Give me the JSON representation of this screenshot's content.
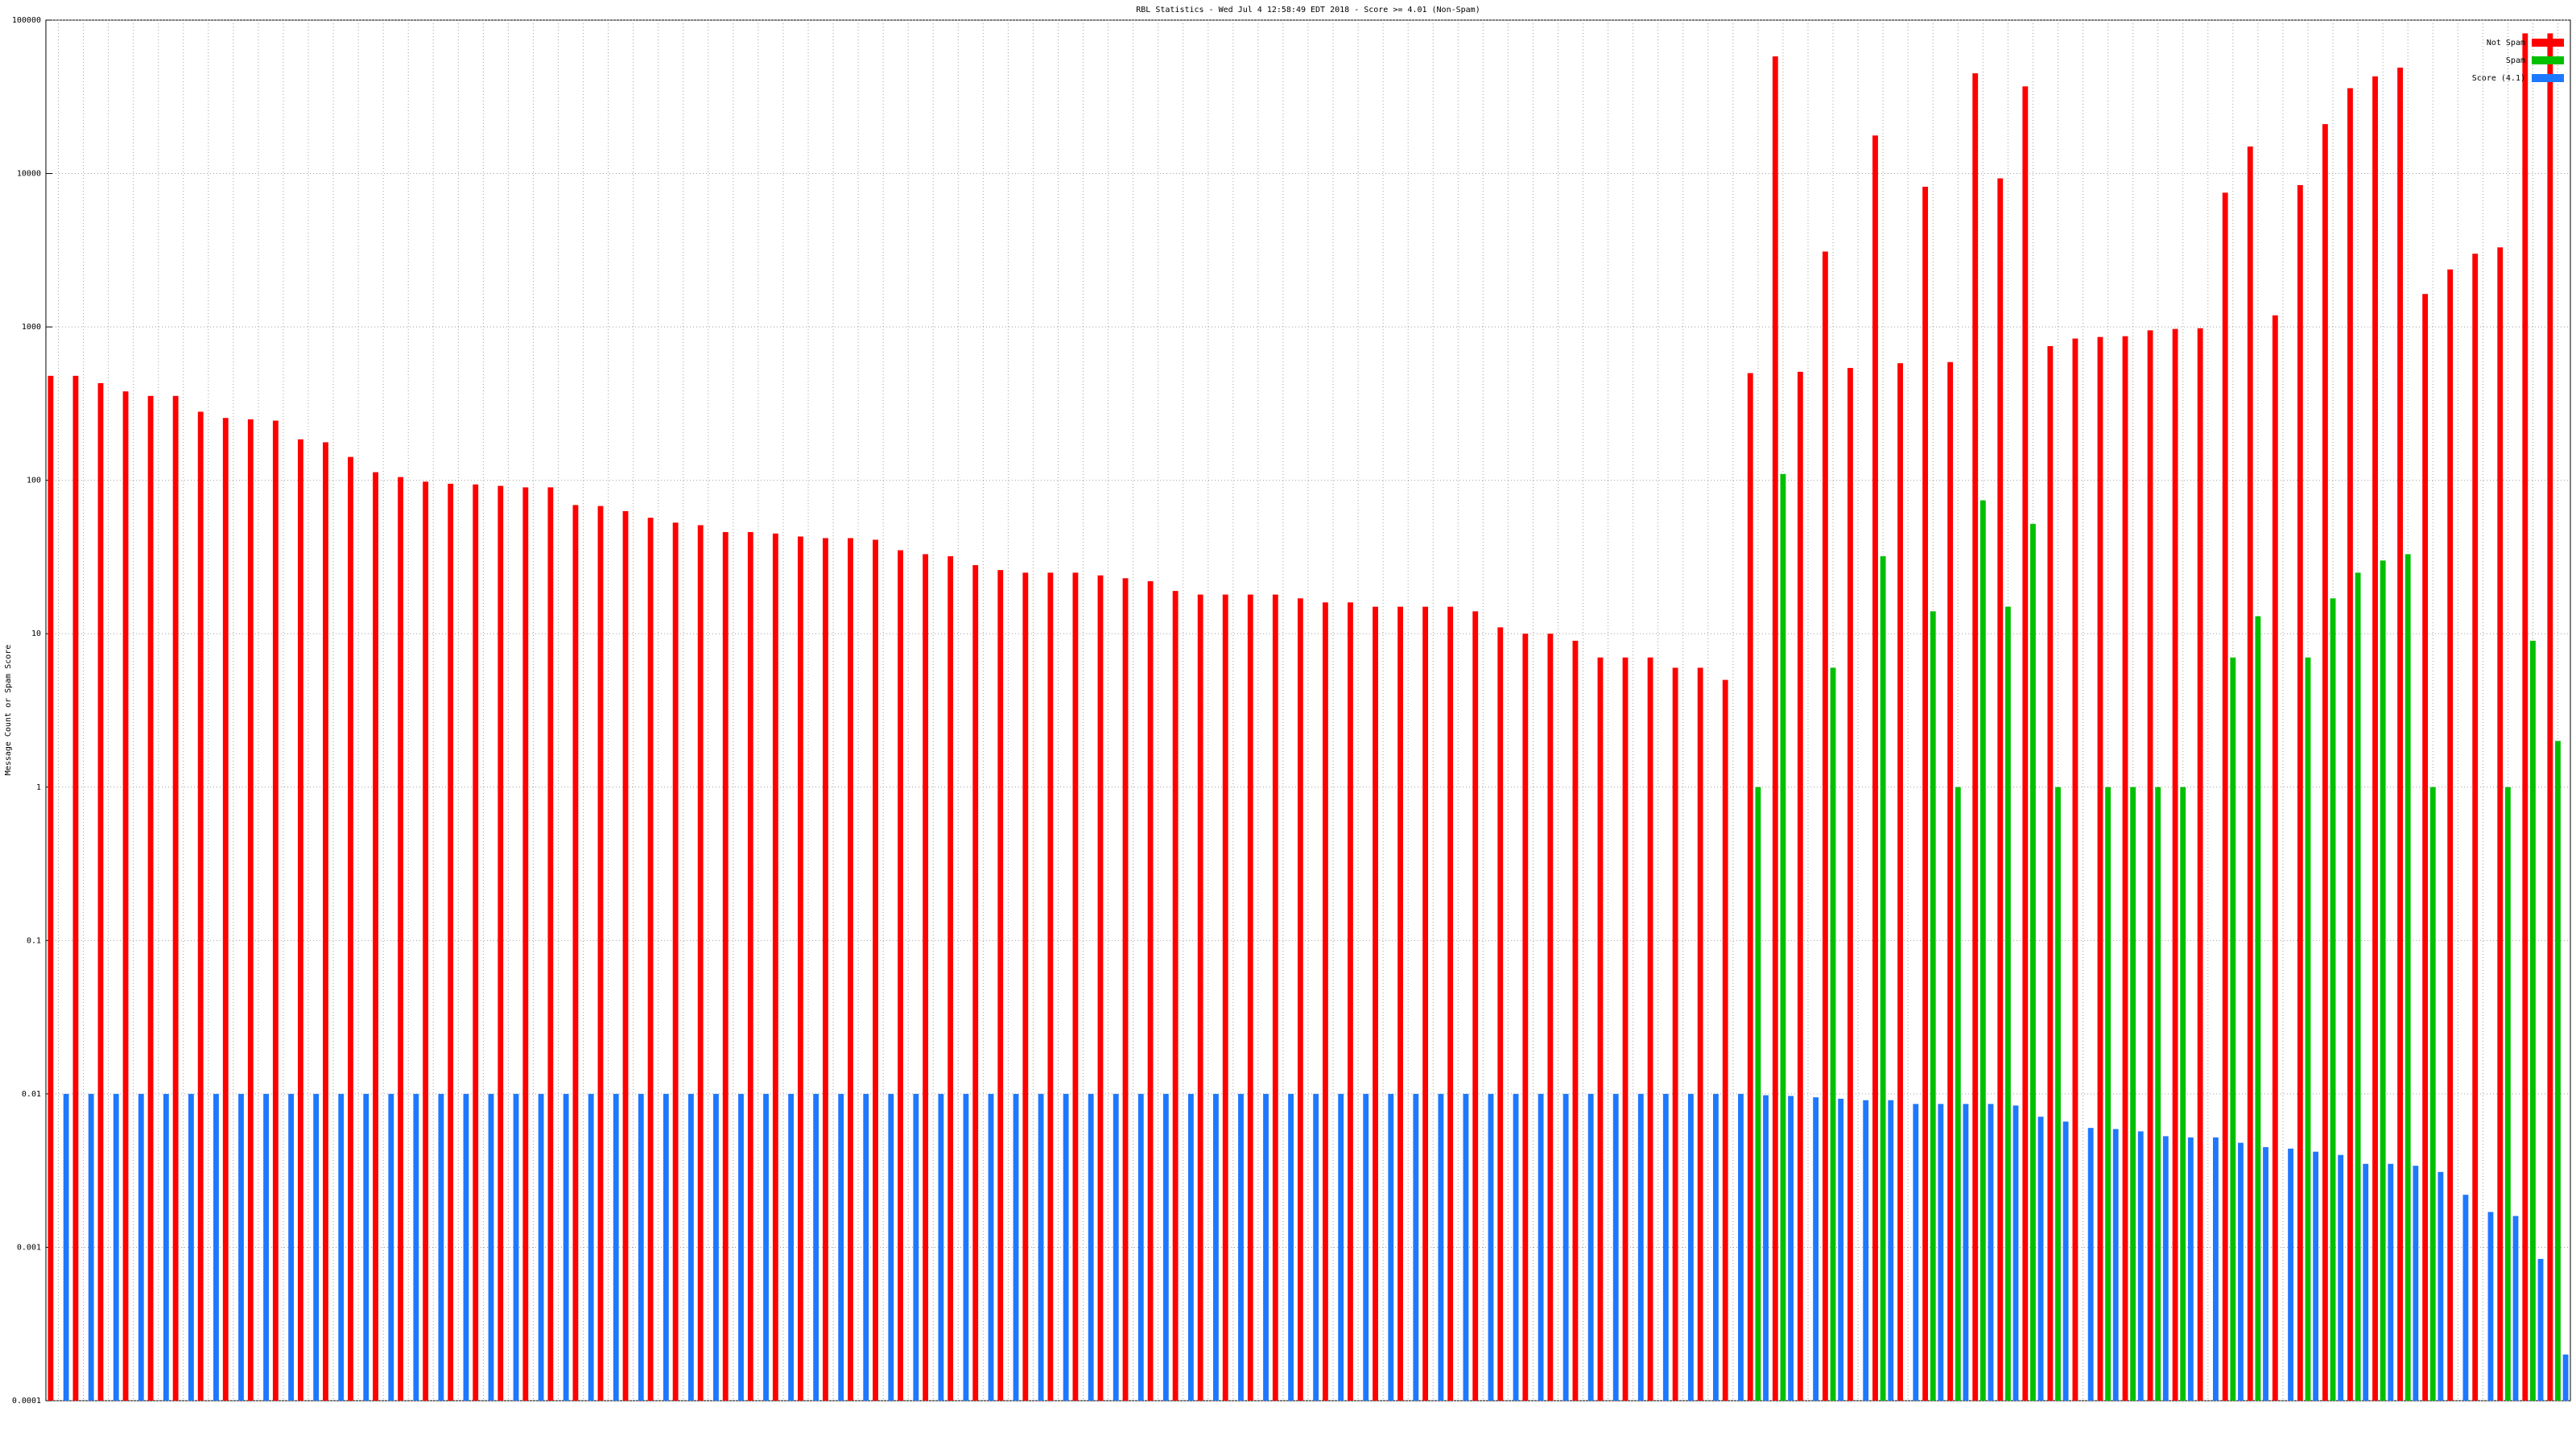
{
  "chart_data": {
    "type": "bar",
    "title": "RBL Statistics - Wed Jul  4 12:58:49 EDT 2018 - Score >= 4.01 (Non-Spam)",
    "y_label": "Message Count or Spam Score",
    "log_scale": true,
    "grid": true,
    "legend": "top-right",
    "ylim": [
      0.0001,
      100000
    ],
    "yticks": [
      0.0001,
      0.001,
      0.01,
      0.1,
      1,
      10,
      100,
      1000,
      10000,
      100000
    ],
    "categories": [
      null,
      null,
      null,
      null,
      null,
      null,
      null,
      null,
      null,
      null,
      null,
      null,
      null,
      null,
      null,
      null,
      null,
      null,
      null,
      null,
      null,
      null,
      null,
      null,
      null,
      null,
      null,
      null,
      null,
      null,
      null,
      null,
      null,
      null,
      null,
      null,
      null,
      null,
      null,
      null,
      null,
      null,
      null,
      null,
      null,
      null,
      null,
      null,
      null,
      null,
      null,
      null,
      null,
      null,
      null,
      null,
      null,
      null,
      null,
      null,
      null,
      null,
      null,
      null,
      null,
      null,
      null,
      null,
      null,
      null,
      null,
      null,
      null,
      null,
      null,
      null,
      null,
      null,
      null,
      null,
      null,
      null,
      null,
      null,
      null,
      null,
      null,
      null,
      null,
      null,
      null,
      null,
      null,
      null,
      null,
      null,
      null,
      null,
      null,
      null,
      null
    ],
    "series": [
      {
        "name": "Not Spam",
        "color": "#ff0000",
        "values": [
          480,
          480,
          430,
          380,
          355,
          355,
          280,
          255,
          250,
          245,
          185,
          177,
          142,
          113,
          105,
          98,
          95,
          94,
          92,
          90,
          90,
          69,
          68,
          63,
          57,
          53,
          51,
          46,
          46,
          45,
          43,
          42,
          42,
          41,
          35,
          33,
          32,
          28,
          26,
          25,
          25,
          25,
          24,
          23,
          22,
          19,
          18,
          18,
          18,
          18,
          17,
          16,
          16,
          15,
          15,
          15,
          15,
          14,
          11,
          10,
          10,
          9,
          7,
          7,
          7,
          6,
          6,
          5,
          500,
          58000,
          510,
          3100,
          540,
          17700,
          580,
          8200,
          590,
          45000,
          9300,
          37000,
          750,
          840,
          860,
          870,
          950,
          970,
          980,
          7500,
          15000,
          1190,
          8400,
          21000,
          36000,
          43000,
          49000,
          1640,
          2370,
          3000,
          3300,
          82000,
          82000
        ]
      },
      {
        "name": "Spam",
        "color": "#00c000",
        "values": [
          null,
          null,
          null,
          null,
          null,
          null,
          null,
          null,
          null,
          null,
          null,
          null,
          null,
          null,
          null,
          null,
          null,
          null,
          null,
          null,
          null,
          null,
          null,
          null,
          null,
          null,
          null,
          null,
          null,
          null,
          null,
          null,
          null,
          null,
          null,
          null,
          null,
          null,
          null,
          null,
          null,
          null,
          null,
          null,
          null,
          null,
          null,
          null,
          null,
          null,
          null,
          null,
          null,
          null,
          null,
          null,
          null,
          null,
          null,
          null,
          null,
          null,
          null,
          null,
          null,
          null,
          null,
          null,
          1,
          110,
          null,
          6,
          null,
          32,
          null,
          14,
          1,
          74,
          15,
          52,
          1,
          null,
          1,
          1,
          1,
          1,
          null,
          7,
          13,
          null,
          7,
          17,
          25,
          30,
          33,
          1,
          null,
          null,
          1,
          9,
          2
        ]
      },
      {
        "name": "Score (4.1)",
        "color": "#1e78ff",
        "values": [
          0.01,
          0.01,
          0.01,
          0.01,
          0.01,
          0.01,
          0.01,
          0.01,
          0.01,
          0.01,
          0.01,
          0.01,
          0.01,
          0.01,
          0.01,
          0.01,
          0.01,
          0.01,
          0.01,
          0.01,
          0.01,
          0.01,
          0.01,
          0.01,
          0.01,
          0.01,
          0.01,
          0.01,
          0.01,
          0.01,
          0.01,
          0.01,
          0.01,
          0.01,
          0.01,
          0.01,
          0.01,
          0.01,
          0.01,
          0.01,
          0.01,
          0.01,
          0.01,
          0.01,
          0.01,
          0.01,
          0.01,
          0.01,
          0.01,
          0.01,
          0.01,
          0.01,
          0.01,
          0.01,
          0.01,
          0.01,
          0.01,
          0.01,
          0.01,
          0.01,
          0.01,
          0.01,
          0.01,
          0.01,
          0.01,
          0.01,
          0.01,
          0.01,
          0.0098,
          0.0097,
          0.0095,
          0.0093,
          0.0091,
          0.0091,
          0.0086,
          0.0086,
          0.0086,
          0.0086,
          0.0084,
          0.0071,
          0.0066,
          0.006,
          0.0059,
          0.0057,
          0.0053,
          0.0052,
          0.0052,
          0.0048,
          0.0045,
          0.0044,
          0.0042,
          0.004,
          0.0035,
          0.0035,
          0.0034,
          0.0031,
          0.0022,
          0.0017,
          0.0016,
          0.00084,
          0.0002
        ]
      }
    ]
  }
}
